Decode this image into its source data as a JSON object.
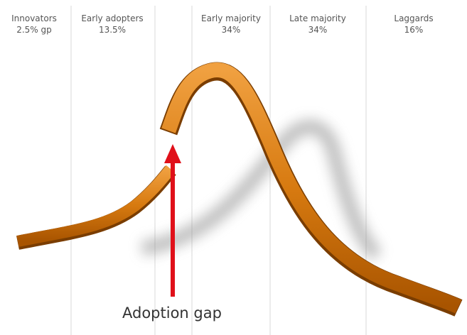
{
  "segments": [
    {
      "name": "Innovators",
      "share": "2.5% gp"
    },
    {
      "name": "Early adopters",
      "share": "13.5%"
    },
    {
      "name": "Early majority",
      "share": "34%"
    },
    {
      "name": "Late majority",
      "share": "34%"
    },
    {
      "name": "Laggards",
      "share": "16%"
    }
  ],
  "annotation": "Adoption gap"
}
